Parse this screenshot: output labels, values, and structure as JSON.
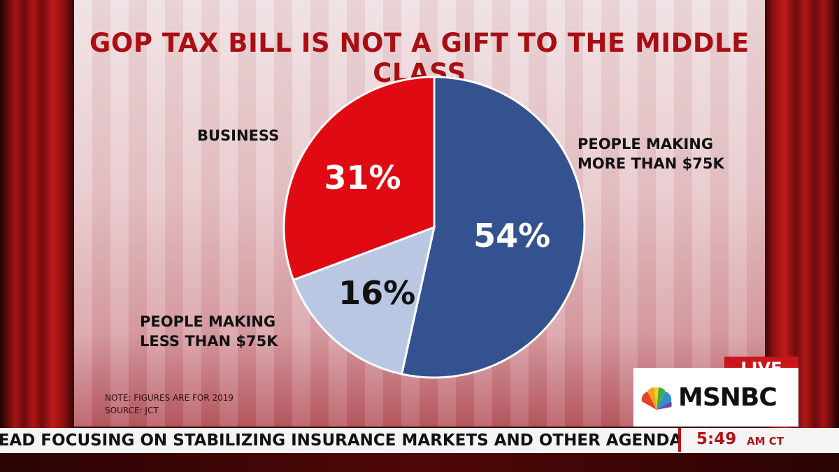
{
  "chart_data": {
    "type": "pie",
    "title": "GOP TAX BILL IS NOT A GIFT TO THE MIDDLE CLASS",
    "slices": [
      {
        "label": "PEOPLE MAKING\nMORE THAN $75K",
        "value": 54,
        "display": "54%",
        "color": "#34528f",
        "text_color": "#ffffff"
      },
      {
        "label": "PEOPLE MAKING\nLESS THAN $75K",
        "value": 16,
        "display": "16%",
        "color": "#b9c7e2",
        "text_color": "#111111"
      },
      {
        "label": "BUSINESS",
        "value": 31,
        "display": "31%",
        "color": "#e00b12",
        "text_color": "#ffffff"
      }
    ],
    "notes": [
      "NOTE: FIGURES ARE FOR 2019",
      "SOURCE: JCT"
    ]
  },
  "ticker": {
    "text": "TEAD FOCUSING ON STABILIZING INSURANCE MARKETS AND OTHER AGENDA ITEMS",
    "time": "5:49",
    "ampm": "AM CT"
  },
  "logo": {
    "live": "LIVE",
    "network": "MSNBC"
  }
}
